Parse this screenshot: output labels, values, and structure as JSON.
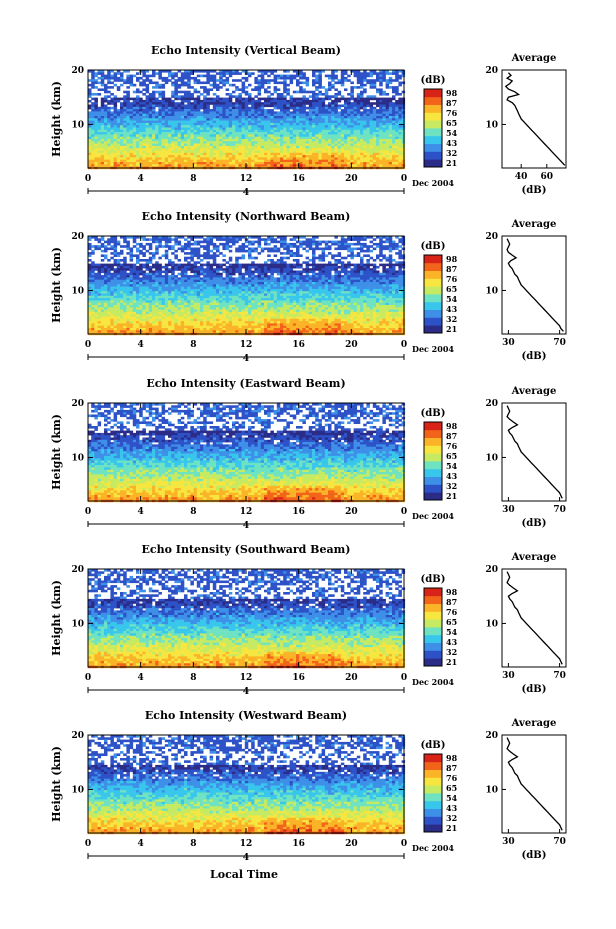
{
  "colors": {
    "scale": [
      "#2b2c87",
      "#2d52c8",
      "#3e8fe8",
      "#38c6ec",
      "#6fe3c1",
      "#c6ea62",
      "#f7e540",
      "#fbb327",
      "#f3641b",
      "#d72318"
    ]
  },
  "chart_data": [
    {
      "type": "heatmap",
      "title": "Echo Intensity (Vertical Beam)",
      "ylabel": "Height (km)",
      "ylim": [
        2,
        20
      ],
      "yticks": [
        "20",
        "10"
      ],
      "xlim": [
        0,
        24
      ],
      "xticks": [
        "0",
        "4",
        "8",
        "12",
        "16",
        "20",
        "0"
      ],
      "date_label": "4",
      "date_suffix": "Dec 2004",
      "colorbar": {
        "label": "(dB)",
        "ticks": [
          "98",
          "87",
          "76",
          "65",
          "54",
          "43",
          "32",
          "21"
        ]
      },
      "profile": {
        "title": "Average",
        "xlabel": "(dB)",
        "xticks": [
          "40",
          "60"
        ],
        "xlim": [
          25,
          75
        ],
        "ylim": [
          2,
          20
        ],
        "yticks": [
          "20",
          "10"
        ],
        "height": [
          19.5,
          19,
          18.5,
          18,
          17.5,
          17,
          16.5,
          16,
          15.5,
          15,
          14.5,
          14,
          13.5,
          13,
          12.5,
          12,
          11.5,
          11,
          10.5,
          10,
          9.5,
          9,
          8.5,
          8,
          7.5,
          7,
          6.5,
          6,
          5.5,
          5,
          4.5,
          4,
          3.5,
          3,
          2.5
        ],
        "value": [
          30,
          32,
          29,
          33,
          31,
          28,
          30,
          35,
          38,
          30,
          29,
          33,
          35,
          36,
          37,
          38,
          39,
          40,
          42,
          44,
          46,
          48,
          50,
          52,
          54,
          56,
          58,
          60,
          62,
          64,
          66,
          68,
          70,
          72,
          74
        ]
      }
    },
    {
      "type": "heatmap",
      "title": "Echo Intensity (Northward Beam)",
      "ylabel": "Height (km)",
      "ylim": [
        2,
        20
      ],
      "yticks": [
        "20",
        "10"
      ],
      "xlim": [
        0,
        24
      ],
      "xticks": [
        "0",
        "4",
        "8",
        "12",
        "16",
        "20",
        "0"
      ],
      "date_label": "4",
      "date_suffix": "Dec 2004",
      "colorbar": {
        "label": "(dB)",
        "ticks": [
          "98",
          "87",
          "76",
          "65",
          "54",
          "43",
          "32",
          "21"
        ]
      },
      "profile": {
        "title": "Average",
        "xlabel": "(dB)",
        "xticks": [
          "30",
          "70"
        ],
        "xlim": [
          25,
          75
        ],
        "ylim": [
          2,
          20
        ],
        "yticks": [
          "20",
          "10"
        ],
        "height": [
          19.5,
          19,
          18.5,
          18,
          17.5,
          17,
          16.5,
          16,
          15.5,
          15,
          14.5,
          14,
          13.5,
          13,
          12.5,
          12,
          11.5,
          11,
          10.5,
          10,
          9.5,
          9,
          8.5,
          8,
          7.5,
          7,
          6.5,
          6,
          5.5,
          5,
          4.5,
          4,
          3.5,
          3,
          2.5
        ],
        "value": [
          29,
          30,
          31,
          30,
          29,
          30,
          33,
          36,
          32,
          30,
          31,
          33,
          34,
          35,
          37,
          38,
          39,
          40,
          42,
          44,
          46,
          48,
          50,
          52,
          54,
          56,
          58,
          60,
          62,
          64,
          66,
          68,
          70,
          71,
          73
        ]
      }
    },
    {
      "type": "heatmap",
      "title": "Echo Intensity (Eastward Beam)",
      "ylabel": "Height (km)",
      "ylim": [
        2,
        20
      ],
      "yticks": [
        "20",
        "10"
      ],
      "xlim": [
        0,
        24
      ],
      "xticks": [
        "0",
        "4",
        "8",
        "12",
        "16",
        "20",
        "0"
      ],
      "date_label": "4",
      "date_suffix": "Dec 2004",
      "colorbar": {
        "label": "(dB)",
        "ticks": [
          "98",
          "87",
          "76",
          "65",
          "54",
          "43",
          "32",
          "21"
        ]
      },
      "profile": {
        "title": "Average",
        "xlabel": "(dB)",
        "xticks": [
          "30",
          "70"
        ],
        "xlim": [
          25,
          75
        ],
        "ylim": [
          2,
          20
        ],
        "yticks": [
          "20",
          "10"
        ],
        "height": [
          19.5,
          19,
          18.5,
          18,
          17.5,
          17,
          16.5,
          16,
          15.5,
          15,
          14.5,
          14,
          13.5,
          13,
          12.5,
          12,
          11.5,
          11,
          10.5,
          10,
          9.5,
          9,
          8.5,
          8,
          7.5,
          7,
          6.5,
          6,
          5.5,
          5,
          4.5,
          4,
          3.5,
          3,
          2.5
        ],
        "value": [
          29,
          30,
          31,
          30,
          29,
          31,
          34,
          37,
          33,
          30,
          31,
          33,
          34,
          35,
          37,
          38,
          39,
          40,
          42,
          44,
          46,
          48,
          50,
          52,
          54,
          56,
          58,
          60,
          62,
          64,
          66,
          68,
          70,
          71,
          72
        ]
      }
    },
    {
      "type": "heatmap",
      "title": "Echo Intensity (Southward Beam)",
      "ylabel": "Height (km)",
      "ylim": [
        2,
        20
      ],
      "yticks": [
        "20",
        "10"
      ],
      "xlim": [
        0,
        24
      ],
      "xticks": [
        "0",
        "4",
        "8",
        "12",
        "16",
        "20",
        "0"
      ],
      "date_label": "4",
      "date_suffix": "Dec 2004",
      "colorbar": {
        "label": "(dB)",
        "ticks": [
          "98",
          "87",
          "76",
          "65",
          "54",
          "43",
          "32",
          "21"
        ]
      },
      "profile": {
        "title": "Average",
        "xlabel": "(dB)",
        "xticks": [
          "30",
          "70"
        ],
        "xlim": [
          25,
          75
        ],
        "ylim": [
          2,
          20
        ],
        "yticks": [
          "20",
          "10"
        ],
        "height": [
          19.5,
          19,
          18.5,
          18,
          17.5,
          17,
          16.5,
          16,
          15.5,
          15,
          14.5,
          14,
          13.5,
          13,
          12.5,
          12,
          11.5,
          11,
          10.5,
          10,
          9.5,
          9,
          8.5,
          8,
          7.5,
          7,
          6.5,
          6,
          5.5,
          5,
          4.5,
          4,
          3.5,
          3,
          2.5
        ],
        "value": [
          29,
          30,
          31,
          30,
          29,
          31,
          34,
          37,
          33,
          30,
          31,
          33,
          34,
          35,
          37,
          38,
          39,
          40,
          42,
          44,
          46,
          48,
          50,
          52,
          54,
          56,
          58,
          60,
          62,
          64,
          66,
          68,
          70,
          71,
          72
        ]
      }
    },
    {
      "type": "heatmap",
      "title": "Echo Intensity (Westward Beam)",
      "ylabel": "Height (km)",
      "ylim": [
        2,
        20
      ],
      "yticks": [
        "20",
        "10"
      ],
      "xlim": [
        0,
        24
      ],
      "xticks": [
        "0",
        "4",
        "8",
        "12",
        "16",
        "20",
        "0"
      ],
      "date_label": "4",
      "date_suffix": "Dec 2004",
      "colorbar": {
        "label": "(dB)",
        "ticks": [
          "98",
          "87",
          "76",
          "65",
          "54",
          "43",
          "32",
          "21"
        ]
      },
      "profile": {
        "title": "Average",
        "xlabel": "(dB)",
        "xticks": [
          "30",
          "70"
        ],
        "xlim": [
          25,
          75
        ],
        "ylim": [
          2,
          20
        ],
        "yticks": [
          "20",
          "10"
        ],
        "height": [
          19.5,
          19,
          18.5,
          18,
          17.5,
          17,
          16.5,
          16,
          15.5,
          15,
          14.5,
          14,
          13.5,
          13,
          12.5,
          12,
          11.5,
          11,
          10.5,
          10,
          9.5,
          9,
          8.5,
          8,
          7.5,
          7,
          6.5,
          6,
          5.5,
          5,
          4.5,
          4,
          3.5,
          3,
          2.5
        ],
        "value": [
          29,
          30,
          31,
          30,
          29,
          31,
          34,
          37,
          33,
          30,
          31,
          33,
          34,
          35,
          37,
          38,
          39,
          40,
          42,
          44,
          46,
          48,
          50,
          52,
          54,
          56,
          58,
          60,
          62,
          64,
          66,
          68,
          70,
          71,
          72
        ]
      }
    }
  ],
  "footer": {
    "xlabel": "Local Time"
  }
}
